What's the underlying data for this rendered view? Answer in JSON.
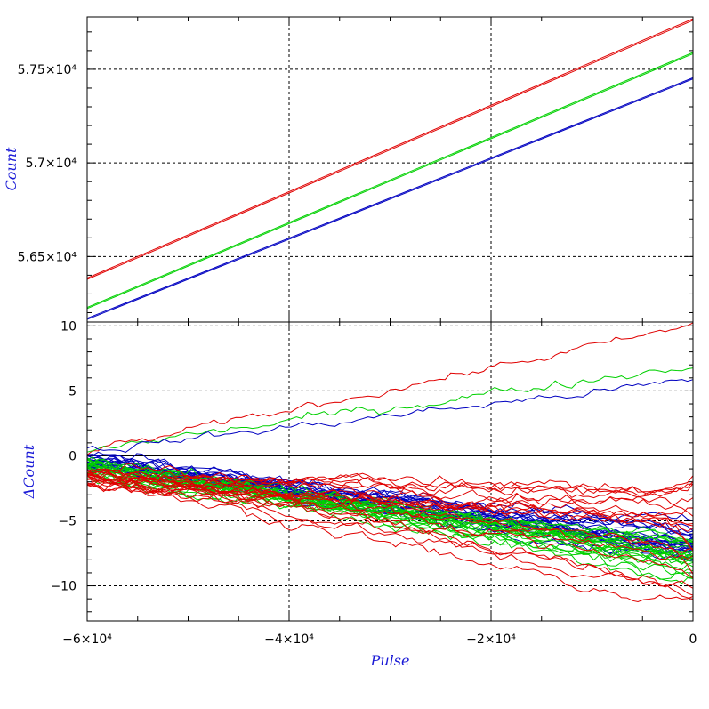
{
  "chart_data": [
    {
      "type": "line",
      "panel": "top",
      "ylabel": "Count",
      "xlim": [
        -60000,
        0
      ],
      "ylim": [
        56150,
        57780
      ],
      "grid": true,
      "yticks": [
        {
          "value": 56500,
          "label": "5.65×10⁴"
        },
        {
          "value": 57000,
          "label": "5.7×10⁴"
        },
        {
          "value": 57500,
          "label": "5.75×10⁴"
        }
      ],
      "series": [
        {
          "color": "#e00000",
          "x": [
            -60000,
            0
          ],
          "y": [
            56385,
            57770
          ]
        },
        {
          "color": "#e00000",
          "x": [
            -60000,
            0
          ],
          "y": [
            56378,
            57762
          ]
        },
        {
          "color": "#00d000",
          "x": [
            -60000,
            0
          ],
          "y": [
            56228,
            57590
          ]
        },
        {
          "color": "#00d000",
          "x": [
            -60000,
            0
          ],
          "y": [
            56222,
            57583
          ]
        },
        {
          "color": "#0000c0",
          "x": [
            -60000,
            0
          ],
          "y": [
            56170,
            57455
          ]
        },
        {
          "color": "#0000c0",
          "x": [
            -60000,
            0
          ],
          "y": [
            56164,
            57449
          ]
        }
      ]
    },
    {
      "type": "line",
      "panel": "bottom",
      "ylabel": "ΔCount",
      "xlabel": "Pulse",
      "xlim": [
        -60000,
        0
      ],
      "ylim": [
        -12.7,
        10.3
      ],
      "grid": true,
      "zero_line": true,
      "xticks": [
        {
          "value": -60000,
          "label": "−6×10⁴"
        },
        {
          "value": -40000,
          "label": "−4×10⁴"
        },
        {
          "value": -20000,
          "label": "−2×10⁴"
        },
        {
          "value": 0,
          "label": "0"
        }
      ],
      "yticks": [
        {
          "value": -10,
          "label": "−10"
        },
        {
          "value": -5,
          "label": "−5"
        },
        {
          "value": 0,
          "label": "0"
        },
        {
          "value": 5,
          "label": "5"
        },
        {
          "value": 10,
          "label": "10"
        }
      ],
      "upper_series": [
        {
          "color": "#e00000",
          "start": 0.3,
          "end": 10.0,
          "noise": 0.25
        },
        {
          "color": "#00d000",
          "start": 0.5,
          "end": 7.0,
          "noise": 0.3
        },
        {
          "color": "#0000c0",
          "start": 0.4,
          "end": 5.8,
          "noise": 0.25
        }
      ],
      "bands": [
        {
          "color": "#0000c0",
          "count": 22,
          "start_range": [
            -1.0,
            0.2
          ],
          "end_range": [
            -8.0,
            -5.0
          ],
          "noise": 0.35
        },
        {
          "color": "#00d000",
          "count": 22,
          "start_range": [
            -2.0,
            -0.2
          ],
          "end_range": [
            -9.5,
            -6.5
          ],
          "noise": 0.4
        },
        {
          "color": "#e00000",
          "count": 20,
          "start_range": [
            -2.2,
            -0.8
          ],
          "end_range": [
            -12.0,
            -2.5
          ],
          "noise": 0.35
        }
      ]
    }
  ]
}
